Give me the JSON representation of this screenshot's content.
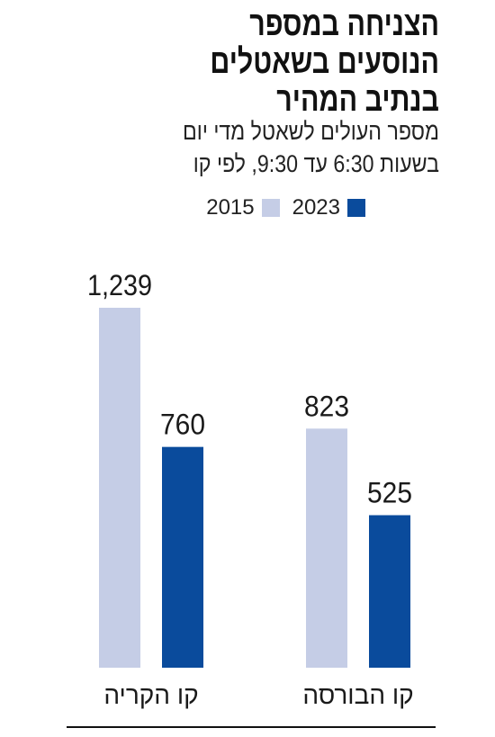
{
  "colors": {
    "series_2015": "#c5cde6",
    "series_2023": "#0a4b9c",
    "baseline": "#111111"
  },
  "chart_data": {
    "type": "bar",
    "title": [
      "הצניחה במספר",
      "הנוסעים בשאטלים",
      "בנתיב המהיר"
    ],
    "subtitle": [
      "מספר העולים לשאטל מדי יום",
      "בשעות 6:30 עד 9:30, לפי קו"
    ],
    "categories": [
      "קו הקריה",
      "קו הבורסה"
    ],
    "series": [
      {
        "name": "2015",
        "values": [
          1239,
          823
        ],
        "labels": [
          "1,239",
          "823"
        ]
      },
      {
        "name": "2023",
        "values": [
          760,
          525
        ],
        "labels": [
          "760",
          "525"
        ]
      }
    ],
    "ylim": [
      0,
      1239
    ],
    "grid": false,
    "legend": "top"
  }
}
